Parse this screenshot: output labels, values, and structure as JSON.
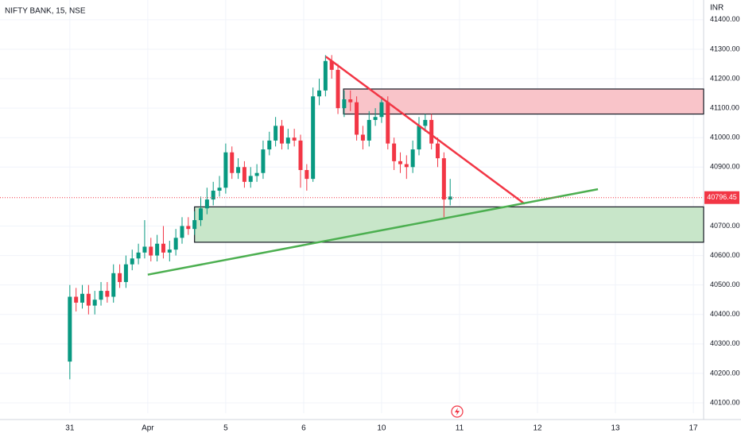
{
  "chart_data": {
    "type": "candlestick",
    "title": "NIFTY BANK, 15, NSE",
    "currency": "INR",
    "up_color": "#089981",
    "down_color": "#f23645",
    "grid": true,
    "xlim": [
      -22.4,
      203.3
    ],
    "ylim": [
      40065,
      41467
    ],
    "xticks": [
      {
        "value": 0,
        "label": "31"
      },
      {
        "value": 25,
        "label": "Apr"
      },
      {
        "value": 50,
        "label": "5"
      },
      {
        "value": 75,
        "label": "6"
      },
      {
        "value": 100,
        "label": "10"
      },
      {
        "value": 125,
        "label": "11"
      },
      {
        "value": 150,
        "label": "12"
      },
      {
        "value": 175,
        "label": "13"
      },
      {
        "value": 200,
        "label": "17"
      }
    ],
    "yticks": [
      {
        "value": 41400,
        "label": "41400.00"
      },
      {
        "value": 41300,
        "label": "41300.00"
      },
      {
        "value": 41200,
        "label": "41200.00"
      },
      {
        "value": 41100,
        "label": "41100.00"
      },
      {
        "value": 41000,
        "label": "41000.00"
      },
      {
        "value": 40900,
        "label": "40900.00"
      },
      {
        "value": 40700,
        "label": "40700.00"
      },
      {
        "value": 40600,
        "label": "40600.00"
      },
      {
        "value": 40500,
        "label": "40500.00"
      },
      {
        "value": 40400,
        "label": "40400.00"
      },
      {
        "value": 40300,
        "label": "40300.00"
      },
      {
        "value": 40200,
        "label": "40200.00"
      },
      {
        "value": 40100,
        "label": "40100.00"
      }
    ],
    "x": [
      0,
      2,
      4,
      6,
      8,
      10,
      12,
      14,
      16,
      18,
      20,
      22,
      24,
      26,
      28,
      30,
      32,
      34,
      36,
      38,
      40,
      42,
      44,
      46,
      48,
      50,
      52,
      54,
      56,
      58,
      60,
      62,
      64,
      66,
      68,
      70,
      72,
      74,
      76,
      78,
      80,
      82,
      84,
      86,
      88,
      90,
      92,
      94,
      96,
      98,
      100,
      102,
      104,
      106,
      108,
      110,
      112,
      114,
      116,
      118,
      120,
      122
    ],
    "open": [
      40240,
      40460,
      40440,
      40470,
      40430,
      40450,
      40480,
      40460,
      40540,
      40510,
      40570,
      40590,
      40610,
      40630,
      40600,
      40640,
      40610,
      40620,
      40660,
      40700,
      40690,
      40720,
      40760,
      40790,
      40820,
      40830,
      40950,
      40880,
      40900,
      40850,
      40870,
      40880,
      40960,
      40990,
      41040,
      40980,
      41000,
      40990,
      40890,
      40860,
      41140,
      41160,
      41260,
      41230,
      41100,
      41130,
      41120,
      41010,
      40990,
      41060,
      41070,
      41120,
      40980,
      40920,
      40910,
      40900,
      40960,
      41040,
      41060,
      40980,
      40930,
      40790
    ],
    "high": [
      40500,
      40490,
      40500,
      40500,
      40480,
      40510,
      40510,
      40570,
      40570,
      40600,
      40620,
      40640,
      40720,
      40660,
      40670,
      40700,
      40650,
      40690,
      40730,
      40730,
      40750,
      40800,
      40830,
      40850,
      40870,
      40980,
      40970,
      40930,
      40920,
      40900,
      40910,
      40990,
      41020,
      41070,
      41060,
      41030,
      41030,
      41010,
      40910,
      41170,
      41200,
      41280,
      41280,
      41250,
      41160,
      41160,
      41140,
      41040,
      41090,
      41100,
      41140,
      41140,
      41000,
      40950,
      40940,
      40990,
      41070,
      41080,
      41080,
      41000,
      40950,
      40860
    ],
    "low": [
      40180,
      40410,
      40420,
      40400,
      40400,
      40430,
      40440,
      40440,
      40490,
      40490,
      40550,
      40570,
      40590,
      40580,
      40580,
      40590,
      40580,
      40600,
      40640,
      40670,
      40670,
      40700,
      40740,
      40770,
      40800,
      40810,
      40860,
      40860,
      40830,
      40830,
      40850,
      40860,
      40940,
      40970,
      40960,
      40960,
      40970,
      40830,
      40820,
      40850,
      41110,
      41140,
      41200,
      41080,
      41070,
      41090,
      40990,
      40960,
      40970,
      41040,
      41050,
      40960,
      40890,
      40880,
      40860,
      40880,
      40940,
      41020,
      40960,
      40900,
      40730,
      40770
    ],
    "close": [
      40460,
      40440,
      40470,
      40430,
      40450,
      40480,
      40460,
      40540,
      40510,
      40570,
      40590,
      40610,
      40630,
      40600,
      40640,
      40610,
      40620,
      40660,
      40700,
      40690,
      40720,
      40760,
      40790,
      40820,
      40830,
      40950,
      40880,
      40900,
      40850,
      40870,
      40880,
      40960,
      40990,
      41040,
      40980,
      41000,
      40990,
      40890,
      40860,
      41140,
      41160,
      41260,
      41230,
      41100,
      41130,
      41120,
      41010,
      40990,
      41060,
      41070,
      41120,
      40980,
      40920,
      40910,
      40900,
      40960,
      41040,
      41060,
      40980,
      40930,
      40790,
      40800
    ],
    "last_price": 40796.45,
    "zones": [
      {
        "x": [
          87.8,
          203.3
        ],
        "top": 41165,
        "bottom": 41080,
        "color": "#f9c4c9"
      },
      {
        "x": [
          40,
          203.3
        ],
        "top": 40765,
        "bottom": 40645,
        "color": "#c8e6c9"
      }
    ],
    "trendlines": [
      {
        "x": [
          82.1,
          145.9
        ],
        "y": [
          41275,
          40775
        ],
        "color": "#f23645"
      },
      {
        "x": [
          25,
          169.4
        ],
        "y": [
          40535,
          40825
        ],
        "color": "#4caf50"
      }
    ]
  }
}
